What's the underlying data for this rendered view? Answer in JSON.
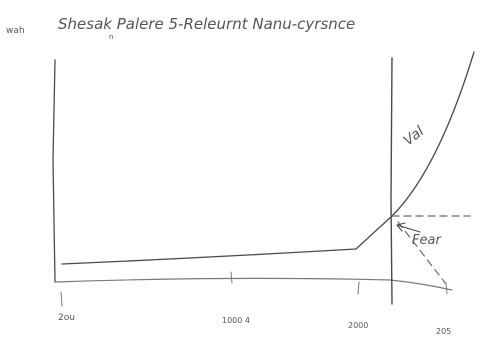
{
  "sketch": {
    "title_prefix": "wah",
    "title": "Shesak Palere 5-Releurnt Nanu-cyrsnce",
    "title_mark": "n",
    "curve_label": "Val",
    "dashed_label": "Fear",
    "x_ticks": [
      "2ou",
      "1000 4",
      "2000",
      "205"
    ]
  }
}
